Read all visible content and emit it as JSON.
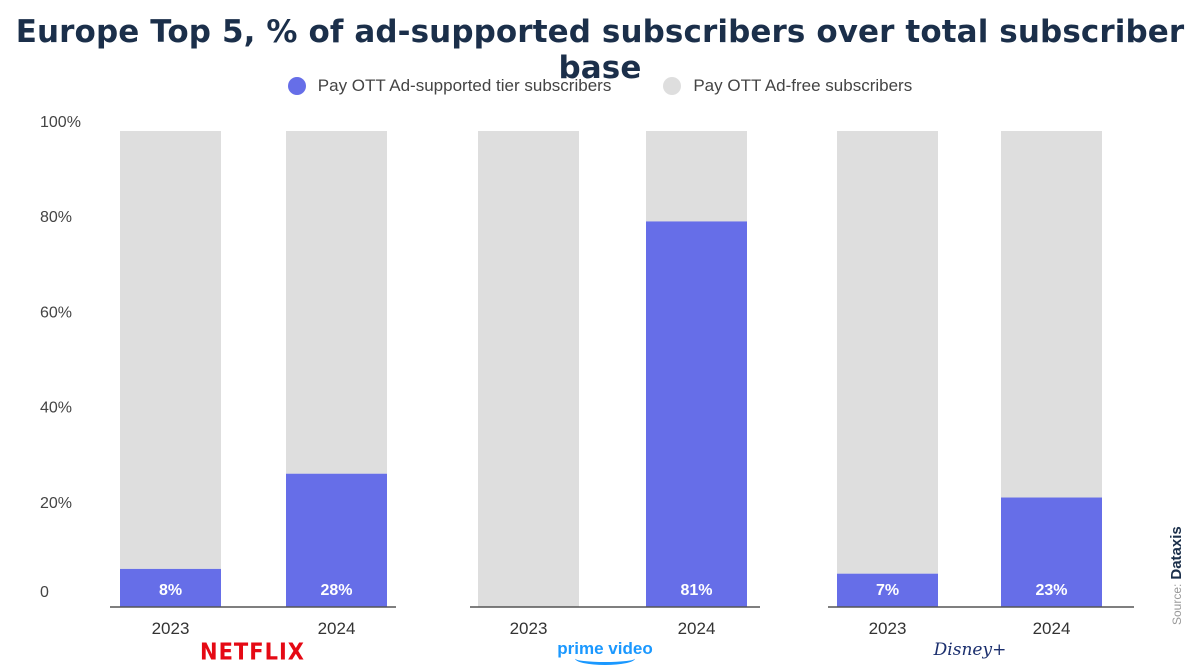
{
  "title": "Europe Top 5, % of ad-supported subscribers over total subscriber base",
  "legend": [
    {
      "label": "Pay OTT Ad-supported tier subscribers",
      "color": "#666ee8"
    },
    {
      "label": "Pay OTT Ad-free subscribers",
      "color": "#dedede"
    }
  ],
  "brands": {
    "netflix": "NETFLIX",
    "prime": "prime video",
    "disney": "Disney+"
  },
  "source": {
    "prefix": "Source:",
    "name": "Dataxis"
  },
  "chart_data": {
    "type": "bar",
    "stacked": true,
    "ylim": [
      0,
      100
    ],
    "yticks": [
      "0",
      "20%",
      "40%",
      "60%",
      "80%",
      "100%"
    ],
    "groups": [
      {
        "name": "NETFLIX",
        "categories": [
          "2023",
          "2024"
        ],
        "ad_supported": [
          8,
          28
        ],
        "labels": [
          "8%",
          "28%"
        ]
      },
      {
        "name": "prime video",
        "categories": [
          "2023",
          "2024"
        ],
        "ad_supported": [
          0,
          81
        ],
        "labels": [
          "",
          "81%"
        ]
      },
      {
        "name": "Disney+",
        "categories": [
          "2023",
          "2024"
        ],
        "ad_supported": [
          7,
          23
        ],
        "labels": [
          "7%",
          "23%"
        ]
      }
    ],
    "series": [
      {
        "name": "Pay OTT Ad-supported tier subscribers",
        "color": "#666ee8"
      },
      {
        "name": "Pay OTT Ad-free subscribers",
        "color": "#dedede"
      }
    ]
  }
}
